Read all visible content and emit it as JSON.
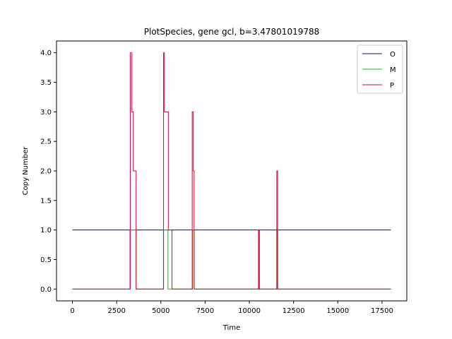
{
  "chart_data": {
    "type": "line",
    "title": "PlotSpecies, gene gcl, b=3.47801019788",
    "xlabel": "Time",
    "ylabel": "Copy Number",
    "xlim": [
      -900,
      18900
    ],
    "ylim": [
      -0.2,
      4.2
    ],
    "xticks": [
      0,
      2500,
      5000,
      7500,
      10000,
      12500,
      15000,
      17500
    ],
    "yticks": [
      0.0,
      0.5,
      1.0,
      1.5,
      2.0,
      2.5,
      3.0,
      3.5,
      4.0
    ],
    "xtick_labels": [
      "0",
      "2500",
      "5000",
      "7500",
      "10000",
      "12500",
      "15000",
      "17500"
    ],
    "ytick_labels": [
      "0.0",
      "0.5",
      "1.0",
      "1.5",
      "2.0",
      "2.5",
      "3.0",
      "3.5",
      "4.0"
    ],
    "grid": false,
    "legend_position": "top-right",
    "series": [
      {
        "name": "O",
        "color": "#0000cc",
        "step": true,
        "x": [
          0,
          18000
        ],
        "y": [
          1,
          1
        ]
      },
      {
        "name": "M",
        "color": "#00cc00",
        "step": true,
        "x": [
          0,
          3250,
          3600,
          5150,
          5400,
          6800,
          6880,
          10520,
          10570,
          11550,
          11600,
          18000
        ],
        "y": [
          0,
          1,
          0,
          1,
          0,
          1,
          0,
          1,
          0,
          1,
          0,
          0
        ]
      },
      {
        "name": "P",
        "color": "#e0003a",
        "step": true,
        "x": [
          0,
          3270,
          3360,
          3440,
          3600,
          5150,
          5200,
          5420,
          5630,
          6770,
          6830,
          6880,
          10520,
          10560,
          11550,
          11600,
          18000
        ],
        "y": [
          0,
          4,
          3,
          2,
          0,
          4,
          3,
          1,
          0,
          3,
          2,
          0,
          1,
          0,
          2,
          0,
          0
        ]
      }
    ]
  }
}
